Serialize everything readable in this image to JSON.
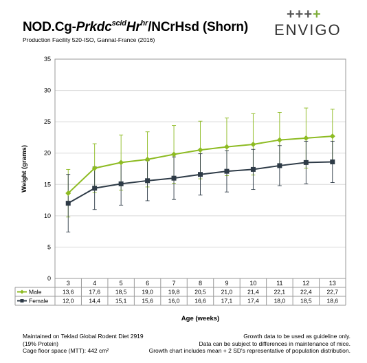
{
  "header": {
    "title_prefix": "NOD.Cg-",
    "title_gene": "Prkdc",
    "title_gene_sup": "scid",
    "title_gene2": "Hr",
    "title_gene2_sup": "hr",
    "title_suffix": "/NCrHsd (Shorn)",
    "subtitle": "Production Facility 520-ISO, Gannat-France (2016)"
  },
  "logo": {
    "plus": "+++",
    "accent_plus": "+",
    "word": "ENVIGO"
  },
  "colors": {
    "male": "#8dbb22",
    "female": "#2e3b47",
    "grid": "#d9d9d9",
    "logo_green": "#7fae3b"
  },
  "chart_data": {
    "type": "line",
    "x": [
      "3",
      "4",
      "5",
      "6",
      "7",
      "8",
      "9",
      "10",
      "11",
      "12",
      "13"
    ],
    "series": [
      {
        "name": "Male",
        "values": [
          13.6,
          17.6,
          18.5,
          19.0,
          19.8,
          20.5,
          21.0,
          21.4,
          22.1,
          22.4,
          22.7
        ],
        "labels": [
          "13,6",
          "17,6",
          "18,5",
          "19,0",
          "19,8",
          "20,5",
          "21,0",
          "21,4",
          "22,1",
          "22,4",
          "22,7"
        ],
        "err": [
          3.8,
          3.9,
          4.4,
          4.4,
          4.6,
          4.6,
          4.6,
          4.9,
          4.4,
          4.8,
          4.3
        ],
        "color": "#8dbb22",
        "marker": "diamond"
      },
      {
        "name": "Female",
        "values": [
          12.0,
          14.4,
          15.1,
          15.6,
          16.0,
          16.6,
          17.1,
          17.4,
          18.0,
          18.5,
          18.6
        ],
        "labels": [
          "12,0",
          "14,4",
          "15,1",
          "15,6",
          "16,0",
          "16,6",
          "17,1",
          "17,4",
          "18,0",
          "18,5",
          "18,6"
        ],
        "err": [
          4.6,
          3.4,
          3.4,
          3.2,
          3.4,
          3.3,
          3.3,
          3.2,
          3.2,
          3.4,
          3.3
        ],
        "color": "#2e3b47",
        "marker": "square"
      }
    ],
    "ylabel": "Weight (grams)",
    "xlabel": "Age (weeks)",
    "ylim": [
      0,
      35
    ],
    "yticks": [
      0,
      5,
      10,
      15,
      20,
      25,
      30,
      35
    ],
    "grid": true,
    "legend": "data-table"
  },
  "footer": {
    "left": [
      "Maintained on Teklad Global Rodent Diet 2919",
      "(19% Protein)",
      "Cage floor space (MTT): 442 cm²"
    ],
    "right": [
      "Growth data to be used as guideline only.",
      "Data can be subject to differences in maintenance of mice.",
      "Growth chart includes mean + 2 SD's representative of population distribution."
    ]
  }
}
